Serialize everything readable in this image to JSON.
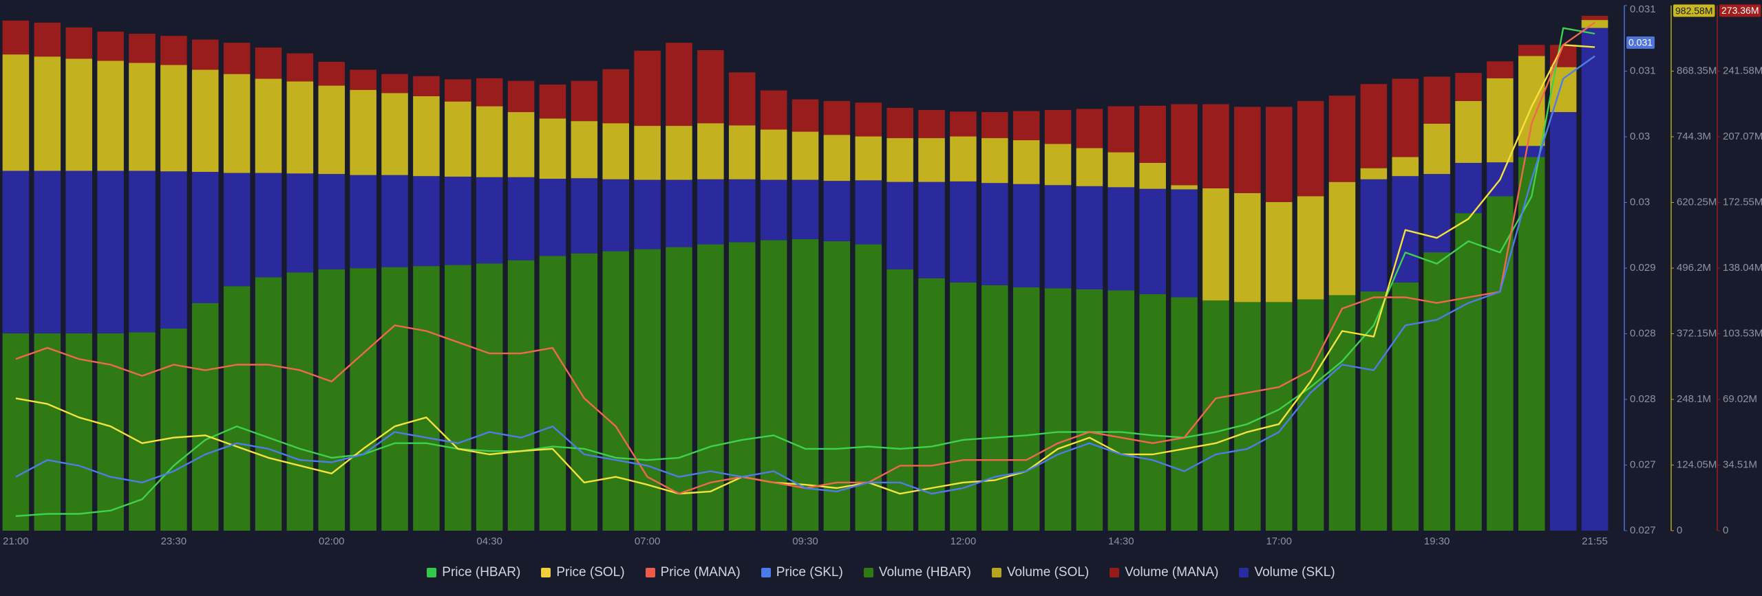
{
  "chart_data": {
    "type": "combo",
    "categories": [
      "21:00",
      null,
      null,
      null,
      null,
      "23:30",
      null,
      null,
      null,
      null,
      "02:00",
      null,
      null,
      null,
      null,
      "04:30",
      null,
      null,
      null,
      null,
      "07:00",
      null,
      null,
      null,
      null,
      "09:30",
      null,
      null,
      null,
      null,
      "12:00",
      null,
      null,
      null,
      null,
      "14:30",
      null,
      null,
      null,
      null,
      "17:00",
      null,
      null,
      null,
      null,
      "19:30",
      null,
      null,
      null,
      null,
      "21:55"
    ],
    "series": [
      {
        "name": "Price (HBAR)",
        "type": "line",
        "axis": "y2",
        "color": "#3fd14f",
        "legend_color": "#34c94a",
        "values": [
          0.026922,
          0.026941,
          0.026941,
          0.026969,
          0.027063,
          0.027345,
          0.027561,
          0.027674,
          0.02758,
          0.027486,
          0.027411,
          0.027439,
          0.027533,
          0.027533,
          0.027486,
          0.027467,
          0.027467,
          0.027505,
          0.027486,
          0.027411,
          0.027392,
          0.027411,
          0.027505,
          0.027561,
          0.027599,
          0.027486,
          0.027486,
          0.027505,
          0.027486,
          0.027505,
          0.027561,
          0.02758,
          0.027599,
          0.027627,
          0.027627,
          0.027627,
          0.027599,
          0.02758,
          0.027627,
          0.027693,
          0.027815,
          0.028003,
          0.028219,
          0.02852,
          0.029131,
          0.029037,
          0.029225,
          0.029131,
          0.029601,
          0.031011,
          0.030964
        ]
      },
      {
        "name": "Price (SOL)",
        "type": "line",
        "axis": "y2",
        "color": "#f5e23e",
        "legend_color": "#f2cf3c",
        "values": [
          0.027909,
          0.027862,
          0.027749,
          0.027674,
          0.027533,
          0.02758,
          0.027599,
          0.027505,
          0.027411,
          0.027345,
          0.027279,
          0.027486,
          0.027674,
          0.027749,
          0.027486,
          0.027439,
          0.027467,
          0.027486,
          0.027204,
          0.027251,
          0.027185,
          0.02711,
          0.027129,
          0.027251,
          0.027204,
          0.027185,
          0.027157,
          0.027204,
          0.02711,
          0.027157,
          0.027204,
          0.027223,
          0.027298,
          0.027486,
          0.02758,
          0.027439,
          0.027439,
          0.027486,
          0.027533,
          0.027627,
          0.027693,
          0.02805,
          0.028473,
          0.028426,
          0.029319,
          0.029253,
          0.029413,
          0.029742,
          0.030353,
          0.03087,
          0.030851
        ]
      },
      {
        "name": "Price (MANA)",
        "type": "line",
        "axis": "y2",
        "color": "#f0694c",
        "legend_color": "#ee5a48",
        "values": [
          0.028238,
          0.028332,
          0.028238,
          0.028191,
          0.028097,
          0.028191,
          0.028144,
          0.028191,
          0.028191,
          0.028144,
          0.02805,
          0.028285,
          0.02852,
          0.028473,
          0.028379,
          0.028285,
          0.028285,
          0.028332,
          0.027909,
          0.027674,
          0.027251,
          0.02711,
          0.027204,
          0.027251,
          0.027204,
          0.027157,
          0.027204,
          0.027204,
          0.027345,
          0.027345,
          0.027392,
          0.027392,
          0.027392,
          0.027533,
          0.027627,
          0.02758,
          0.027533,
          0.02758,
          0.027909,
          0.027956,
          0.028003,
          0.028144,
          0.028661,
          0.028755,
          0.028755,
          0.028708,
          0.028755,
          0.028802,
          0.030212,
          0.03087,
          0.031058
        ]
      },
      {
        "name": "Price (SKL)",
        "type": "line",
        "axis": "y2",
        "color": "#4f7de8",
        "legend_color": "#4a7be6",
        "values": [
          0.027251,
          0.027392,
          0.027345,
          0.027251,
          0.027204,
          0.027298,
          0.027439,
          0.027533,
          0.027486,
          0.027392,
          0.027373,
          0.027439,
          0.027627,
          0.02758,
          0.027533,
          0.027627,
          0.02758,
          0.027674,
          0.027439,
          0.027392,
          0.027345,
          0.027251,
          0.027298,
          0.027251,
          0.027298,
          0.027157,
          0.027129,
          0.027204,
          0.027204,
          0.02711,
          0.027157,
          0.027251,
          0.027298,
          0.027439,
          0.027533,
          0.027439,
          0.027392,
          0.027298,
          0.027439,
          0.027486,
          0.027627,
          0.027956,
          0.028191,
          0.028144,
          0.02852,
          0.028567,
          0.028708,
          0.028802,
          0.029742,
          0.030588,
          0.030776
        ]
      },
      {
        "name": "Volume (HBAR)",
        "type": "bar",
        "axis": "y",
        "color": "#2f7a14",
        "legend_color": "#2f7a14",
        "values": [
          373,
          373,
          373,
          373,
          375,
          382,
          430,
          462,
          479,
          488,
          494,
          496,
          498,
          500,
          502,
          505,
          511,
          519,
          524,
          528,
          532,
          536,
          541,
          545,
          549,
          551,
          547,
          541,
          494,
          477,
          469,
          464,
          460,
          458,
          456,
          454,
          447,
          441,
          435,
          432,
          432,
          437,
          445,
          452,
          469,
          526,
          600,
          632,
          706,
          0,
          0
        ]
      },
      {
        "name": "Volume (SOL)",
        "type": "bar",
        "axis": "y",
        "color": "#c3b11f",
        "legend_color": "#b5a61d",
        "values": [
          220,
          216,
          212,
          208,
          204,
          201,
          193,
          187,
          178,
          174,
          167,
          161,
          155,
          151,
          142,
          134,
          123,
          114,
          108,
          106,
          102,
          102,
          106,
          102,
          95,
          91,
          87,
          83,
          83,
          83,
          85,
          85,
          83,
          78,
          72,
          66,
          49,
          8,
          212,
          206,
          189,
          195,
          214,
          21,
          36,
          95,
          117,
          159,
          170,
          85,
          15
        ]
      },
      {
        "name": "Volume (MANA)",
        "type": "bar",
        "axis": "y",
        "color": "#9a1d1d",
        "legend_color": "#961c1c",
        "values": [
          64,
          64,
          59,
          55,
          55,
          55,
          57,
          59,
          59,
          53,
          45,
          38,
          36,
          38,
          42,
          53,
          59,
          64,
          76,
          102,
          142,
          157,
          138,
          100,
          74,
          61,
          64,
          64,
          57,
          53,
          47,
          49,
          55,
          64,
          74,
          87,
          108,
          153,
          159,
          163,
          180,
          180,
          163,
          159,
          148,
          89,
          53,
          32,
          21,
          42,
          8
        ]
      },
      {
        "name": "Volume (SKL)",
        "type": "bar",
        "axis": "y",
        "color": "#2b2a9c",
        "legend_color": "#2b2aa2",
        "values": [
          307,
          307,
          307,
          307,
          305,
          297,
          248,
          214,
          197,
          187,
          180,
          176,
          174,
          170,
          167,
          163,
          157,
          146,
          142,
          136,
          131,
          127,
          123,
          119,
          114,
          112,
          114,
          121,
          165,
          182,
          191,
          193,
          195,
          195,
          195,
          195,
          199,
          204,
          0,
          0,
          0,
          0,
          0,
          212,
          201,
          148,
          95,
          64,
          21,
          791,
          950
        ]
      }
    ],
    "stack_order": [
      4,
      7,
      5,
      6
    ],
    "ylim": [
      0,
      992.4
    ],
    "yticks": [
      0,
      {
        "value": 124.05,
        "label": "124.05M"
      },
      {
        "value": 248.1,
        "label": "248.1M"
      },
      {
        "value": 372.15,
        "label": "372.15M"
      },
      {
        "value": 496.2,
        "label": "496.2M"
      },
      {
        "value": 620.25,
        "label": "620.25M"
      },
      {
        "value": 744.3,
        "label": "744.3M"
      },
      {
        "value": 868.35,
        "label": "868.35M"
      }
    ],
    "y2lim": [
      0.0268,
      0.0312
    ],
    "y2ticks": [
      {
        "value": 0.0268,
        "label": "0.027"
      },
      {
        "value": 0.02735,
        "label": "0.027"
      },
      {
        "value": 0.0279,
        "label": "0.028"
      },
      {
        "value": 0.02845,
        "label": "0.028"
      },
      {
        "value": 0.029,
        "label": "0.029"
      },
      {
        "value": 0.02955,
        "label": "0.03"
      },
      {
        "value": 0.0301,
        "label": "0.03"
      },
      {
        "value": 0.03065,
        "label": "0.031"
      },
      {
        "value": 0.0312,
        "label": "0.031"
      }
    ],
    "y3lim": [
      0,
      276.08
    ],
    "y3ticks": [
      0,
      {
        "value": 34.51,
        "label": "34.51M"
      },
      {
        "value": 69.02,
        "label": "69.02M"
      },
      {
        "value": 103.53,
        "label": "103.53M"
      },
      {
        "value": 138.04,
        "label": "138.04M"
      },
      {
        "value": 172.55,
        "label": "172.55M"
      },
      {
        "value": 207.07,
        "label": "207.07M"
      },
      {
        "value": 241.58,
        "label": "241.58M"
      }
    ],
    "axis_colors": {
      "y2": "#4f74d9",
      "y": "#b8a81e",
      "y3": "#9b1c1c"
    },
    "current_labels": [
      {
        "axis": "y2",
        "value": 0.030889,
        "label": "0.031",
        "color": "#4f74d9",
        "text_color": "#ffffff"
      },
      {
        "axis": "y",
        "value": 982.58,
        "label": "982.58M",
        "color": "#c9b820",
        "text_color": "#171b2b"
      },
      {
        "axis": "y3",
        "value": 273.36,
        "label": "273.36M",
        "color": "#a31d1d",
        "text_color": "#ffffff"
      }
    ]
  }
}
